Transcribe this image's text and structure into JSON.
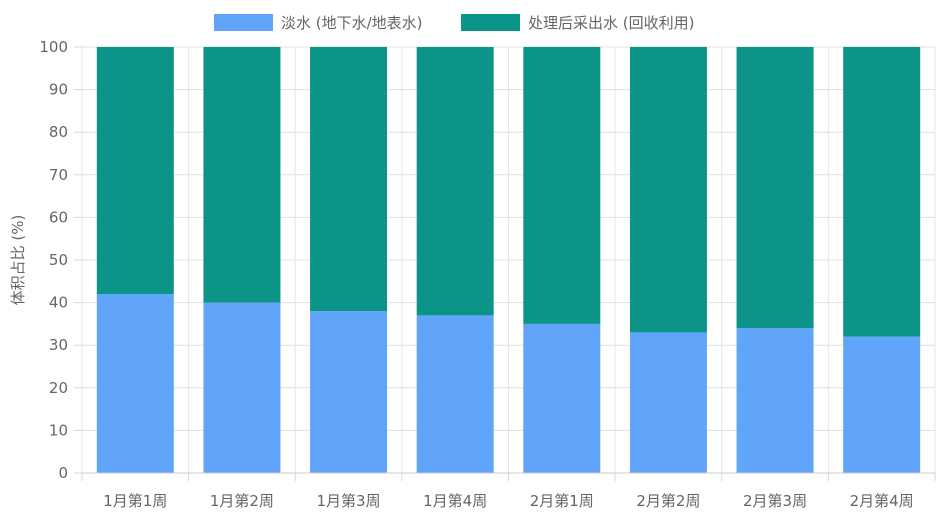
{
  "chart_data": {
    "type": "bar",
    "stacked": true,
    "categories": [
      "1月第1周",
      "1月第2周",
      "1月第3周",
      "1月第4周",
      "2月第1周",
      "2月第2周",
      "2月第3周",
      "2月第4周"
    ],
    "series": [
      {
        "name": "淡水 (地下水/地表水)",
        "color": "#60A5FA",
        "values": [
          42,
          40,
          38,
          37,
          35,
          33,
          34,
          32
        ]
      },
      {
        "name": "处理后采出水 (回收利用)",
        "color": "#0D9488",
        "values": [
          58,
          60,
          62,
          63,
          65,
          67,
          66,
          68
        ]
      }
    ],
    "title": "",
    "xlabel": "",
    "ylabel": "体积占比 (%)",
    "ylim": [
      0,
      100
    ],
    "yticks": [
      0,
      10,
      20,
      30,
      40,
      50,
      60,
      70,
      80,
      90,
      100
    ],
    "grid": true,
    "legend_position": "top-center"
  }
}
